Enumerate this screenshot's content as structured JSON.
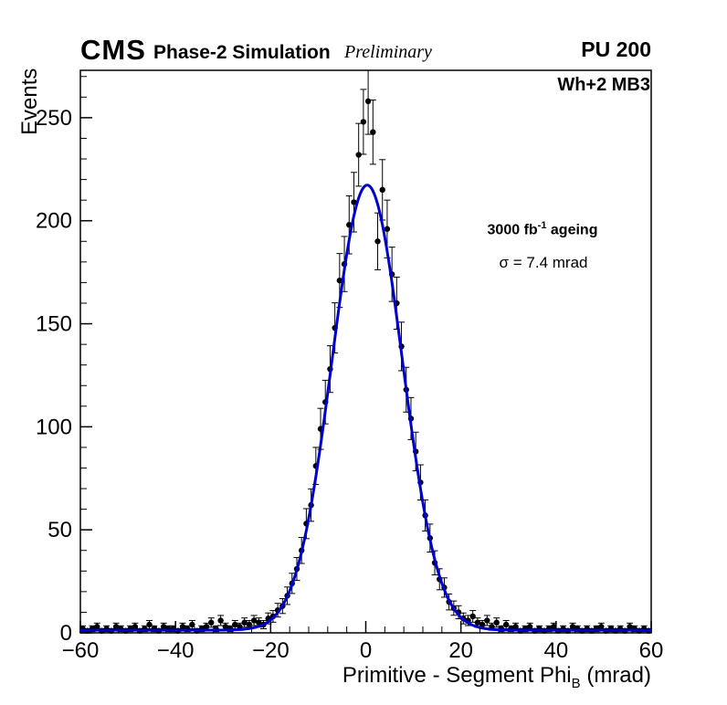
{
  "header": {
    "cms": "CMS",
    "subtitle": "Phase-2 Simulation",
    "preliminary": "Preliminary",
    "pu": "PU 200"
  },
  "plot": {
    "region_label": "Wh+2 MB3",
    "lumi_prefix": "3000 fb",
    "lumi_sup": "-1",
    "lumi_suffix": " ageing",
    "sigma_text": "σ = 7.4 mrad"
  },
  "axes": {
    "x_label_main": "Primitive - Segment Phi",
    "x_label_sub": "B",
    "x_label_unit": " (mrad)",
    "y_label": "Events",
    "x_ticks": [
      -60,
      -40,
      -20,
      0,
      20,
      40,
      60
    ],
    "y_ticks": [
      0,
      50,
      100,
      150,
      200,
      250
    ],
    "x_minor_step": 4,
    "y_minor_step": 10,
    "xlim": [
      -60,
      60
    ],
    "ylim": [
      0,
      273
    ]
  },
  "chart_data": {
    "type": "scatter",
    "title": "",
    "xlabel": "Primitive - Segment Phi_B (mrad)",
    "ylabel": "Events",
    "xlim": [
      -60,
      60
    ],
    "ylim": [
      0,
      273
    ],
    "error_model": "sqrt(N)",
    "marker_color": "#000000",
    "x": [
      -59.5,
      -58.5,
      -57.5,
      -56.5,
      -55.5,
      -54.5,
      -53.5,
      -52.5,
      -51.5,
      -50.5,
      -49.5,
      -48.5,
      -47.5,
      -46.5,
      -45.5,
      -44.5,
      -43.5,
      -42.5,
      -41.5,
      -40.5,
      -39.5,
      -38.5,
      -37.5,
      -36.5,
      -35.5,
      -34.5,
      -33.5,
      -32.5,
      -31.5,
      -30.5,
      -29.5,
      -28.5,
      -27.5,
      -26.5,
      -25.5,
      -24.5,
      -23.5,
      -22.5,
      -21.5,
      -20.5,
      -19.5,
      -18.5,
      -17.5,
      -16.5,
      -15.5,
      -14.5,
      -13.5,
      -12.5,
      -11.5,
      -10.5,
      -9.5,
      -8.5,
      -7.5,
      -6.5,
      -5.5,
      -4.5,
      -3.5,
      -2.5,
      -1.5,
      -0.5,
      0.5,
      1.5,
      2.5,
      3.5,
      4.5,
      5.5,
      6.5,
      7.5,
      8.5,
      9.5,
      10.5,
      11.5,
      12.5,
      13.5,
      14.5,
      15.5,
      16.5,
      17.5,
      18.5,
      19.5,
      20.5,
      21.5,
      22.5,
      23.5,
      24.5,
      25.5,
      26.5,
      27.5,
      28.5,
      29.5,
      30.5,
      31.5,
      32.5,
      33.5,
      34.5,
      35.5,
      36.5,
      37.5,
      38.5,
      39.5,
      40.5,
      41.5,
      42.5,
      43.5,
      44.5,
      45.5,
      46.5,
      47.5,
      48.5,
      49.5,
      50.5,
      51.5,
      52.5,
      53.5,
      54.5,
      55.5,
      56.5,
      57.5,
      58.5,
      59.5
    ],
    "y": [
      2,
      1,
      2,
      3,
      1,
      2,
      1,
      3,
      2,
      1,
      2,
      3,
      1,
      2,
      4,
      2,
      1,
      3,
      2,
      2,
      1,
      3,
      2,
      4,
      1,
      2,
      3,
      5,
      2,
      6,
      3,
      2,
      4,
      3,
      5,
      4,
      6,
      5,
      4,
      7,
      8,
      11,
      13,
      18,
      24,
      31,
      40,
      53,
      62,
      81,
      99,
      112,
      128,
      148,
      171,
      179,
      198,
      209,
      232,
      248,
      258,
      243,
      190,
      215,
      196,
      174,
      160,
      139,
      118,
      104,
      88,
      73,
      57,
      46,
      34,
      26,
      22,
      15,
      12,
      10,
      7,
      6,
      8,
      5,
      4,
      6,
      3,
      5,
      2,
      4,
      2,
      3,
      1,
      2,
      3,
      1,
      2,
      1,
      2,
      3,
      1,
      2,
      1,
      3,
      2,
      1,
      2,
      1,
      2,
      3,
      1,
      2,
      1,
      2,
      1,
      3,
      2,
      1,
      2,
      1
    ],
    "fit": {
      "type": "gaussian",
      "amplitude": 216,
      "mean": 0.3,
      "sigma": 7.4,
      "baseline": 1.3,
      "color": "#0000cc"
    }
  }
}
